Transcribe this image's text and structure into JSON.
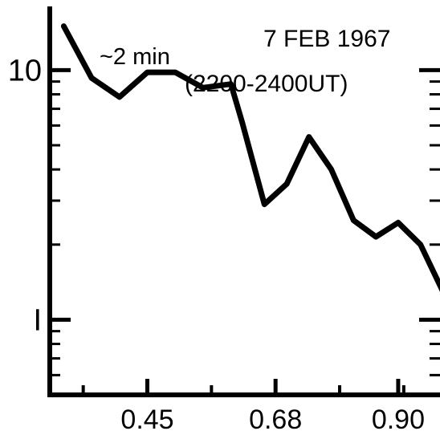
{
  "chart_data": {
    "type": "line",
    "title": "7 FEB 1967",
    "subtitle": "(2200-2400UT)",
    "annotation": "~2 min",
    "xlabel": "",
    "ylabel": "",
    "yscale": "log",
    "xlim": [
      0.275,
      0.975
    ],
    "ylim": [
      0.5,
      18
    ],
    "x_ticks": [
      {
        "value": 0.45,
        "label": "0.45"
      },
      {
        "value": 0.68,
        "label": "0.68"
      },
      {
        "value": 0.9,
        "label": "0.90"
      }
    ],
    "y_ticks": [
      {
        "value": 10,
        "label": "10"
      },
      {
        "value": 1,
        "label": "I"
      }
    ],
    "grid": false,
    "series": [
      {
        "x": [
          0.3,
          0.35,
          0.4,
          0.45,
          0.5,
          0.55,
          0.6,
          0.62,
          0.66,
          0.7,
          0.74,
          0.78,
          0.82,
          0.86,
          0.9,
          0.94,
          0.98
        ],
        "y": [
          15,
          9.3,
          7.8,
          9.8,
          9.8,
          8.5,
          8.8,
          6.2,
          2.9,
          3.5,
          5.4,
          4.0,
          2.5,
          2.15,
          2.45,
          2.0,
          1.3
        ]
      }
    ],
    "color": "#000000"
  }
}
